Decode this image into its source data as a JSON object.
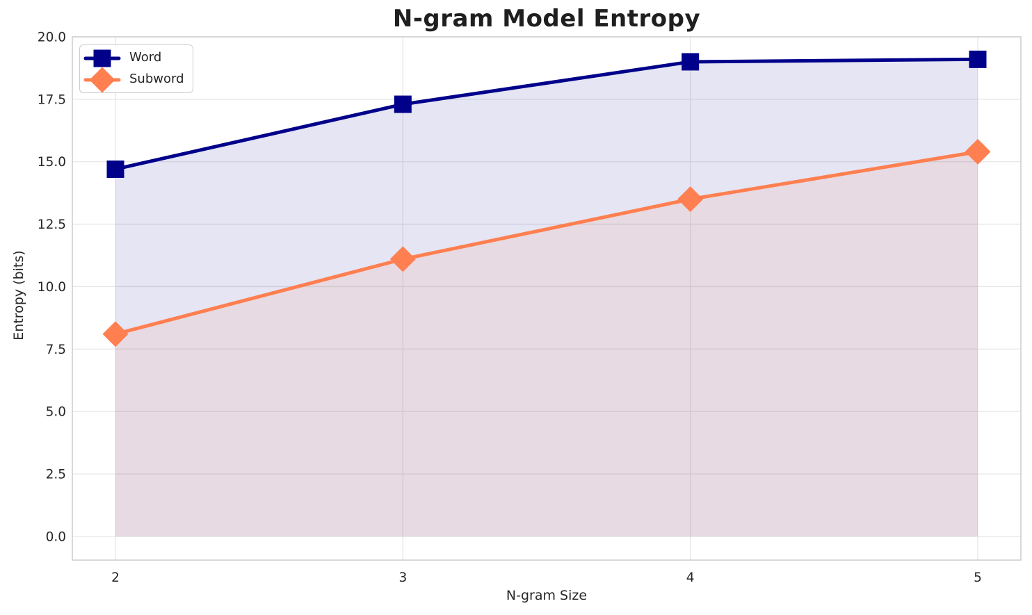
{
  "chart_data": {
    "type": "line",
    "title": "N-gram Model Entropy",
    "xlabel": "N-gram Size",
    "ylabel": "Entropy (bits)",
    "x": [
      2,
      3,
      4,
      5
    ],
    "series": [
      {
        "name": "Word",
        "marker": "square",
        "color": "#00008b",
        "line_width": 5,
        "fill_to_zero": true,
        "fill_alpha": 0.1,
        "values": [
          14.7,
          17.3,
          19.0,
          19.1
        ]
      },
      {
        "name": "Subword",
        "marker": "diamond",
        "color": "#ff7f50",
        "line_width": 5,
        "fill_to_zero": true,
        "fill_alpha": 0.1,
        "values": [
          8.1,
          11.1,
          13.5,
          15.4
        ]
      }
    ],
    "xlim": [
      1.85,
      5.15
    ],
    "ylim": [
      -0.95,
      20.0
    ],
    "xticks": {
      "values": [
        2,
        3,
        4,
        5
      ],
      "labels": [
        "2",
        "3",
        "4",
        "5"
      ]
    },
    "yticks": {
      "values": [
        0,
        2.5,
        5,
        7.5,
        10,
        12.5,
        15,
        17.5,
        20
      ],
      "labels": [
        "0.0",
        "2.5",
        "5.0",
        "7.5",
        "10.0",
        "12.5",
        "15.0",
        "17.5",
        "20.0"
      ]
    },
    "grid": true,
    "legend_position": "upper left",
    "legend_entries": [
      "Word",
      "Subword"
    ]
  },
  "style": {
    "grid_color": "#e6e6e6",
    "spine_color": "#c9c9c9",
    "text_color": "#262626",
    "background": "#ffffff"
  }
}
